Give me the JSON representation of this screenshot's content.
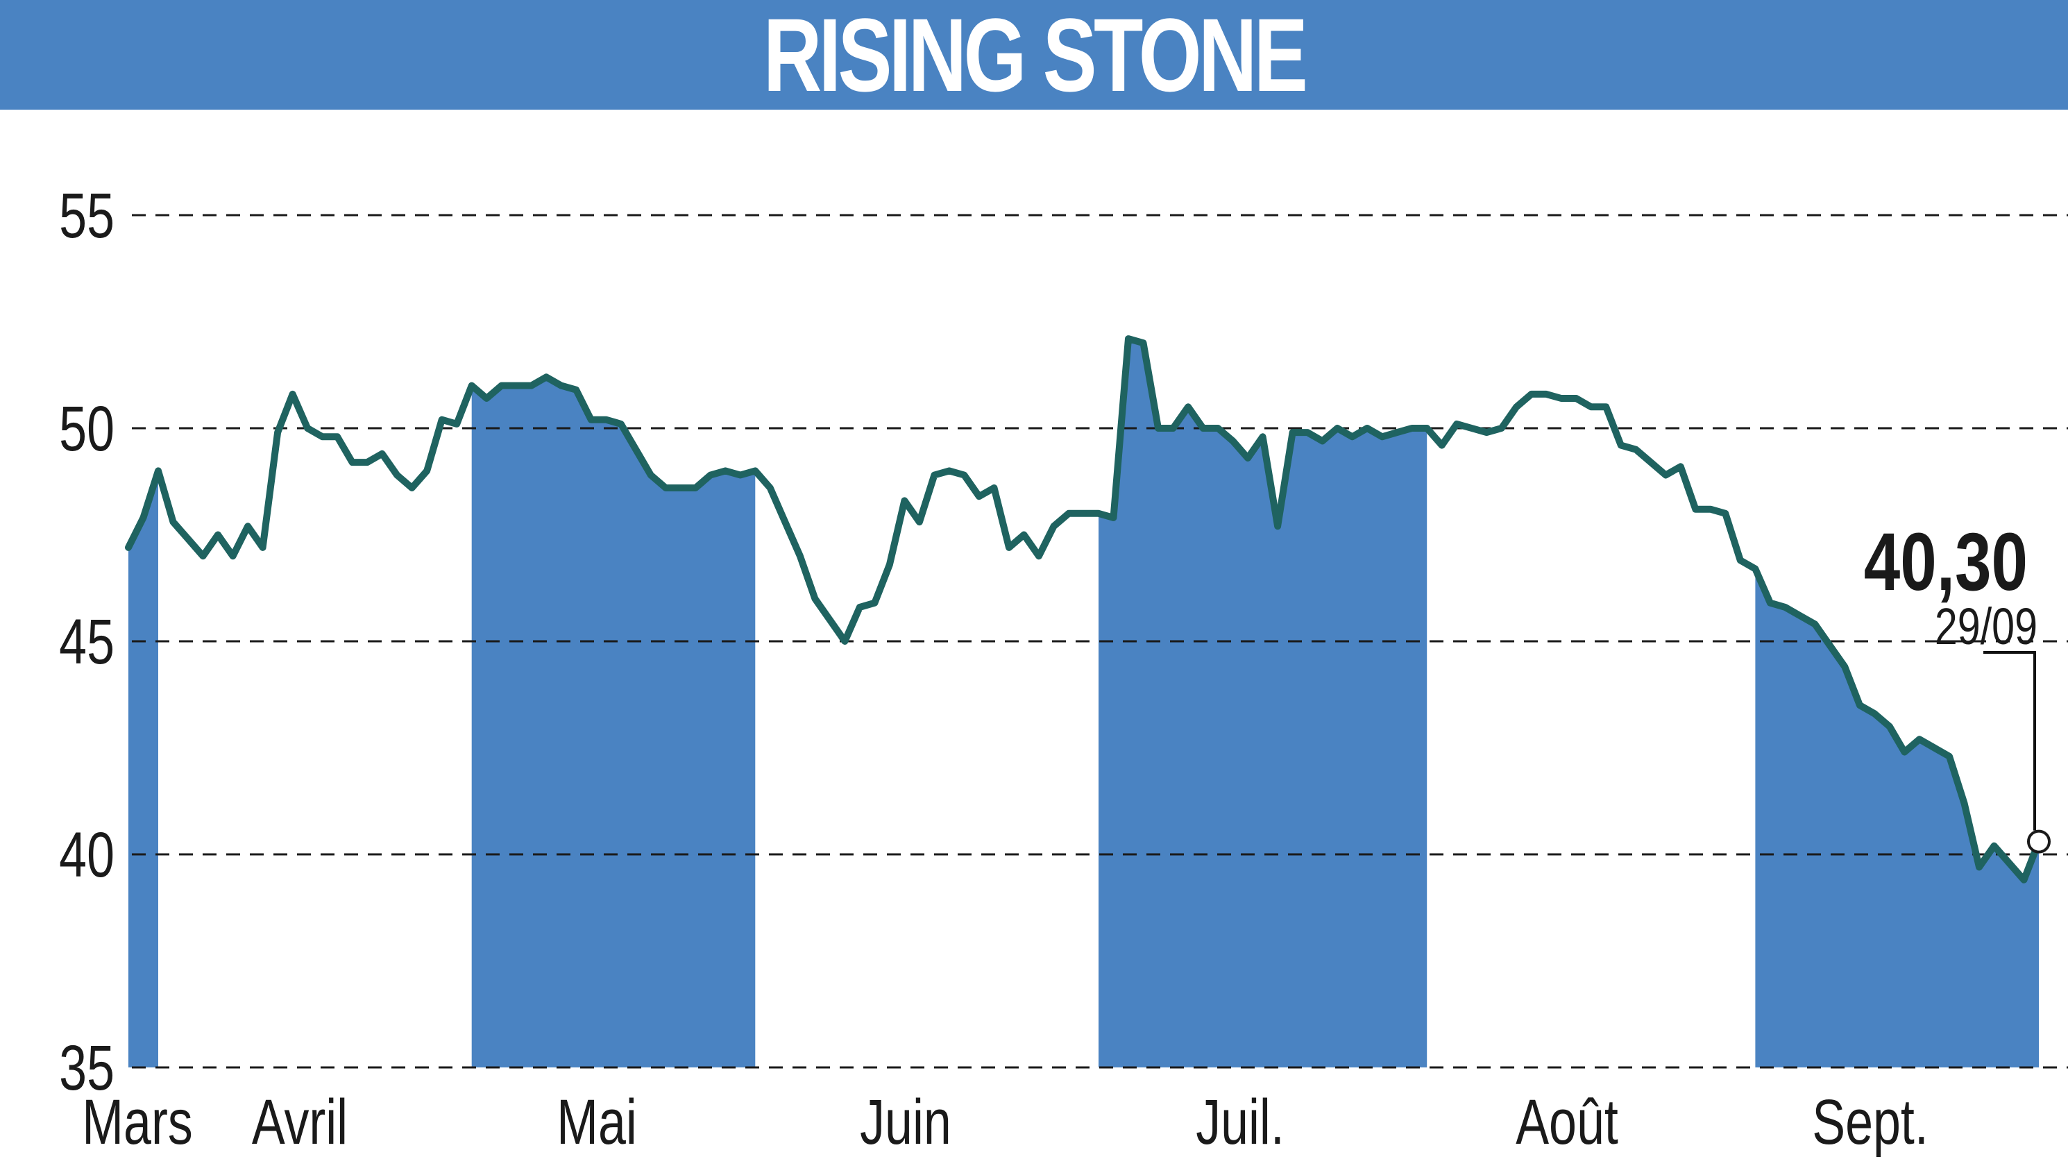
{
  "chart_data": {
    "type": "line",
    "title": "RISING STONE",
    "ylim": [
      35,
      57
    ],
    "yticks": [
      "55",
      "50",
      "45",
      "40",
      "35"
    ],
    "ytick_values": [
      55,
      50,
      45,
      40,
      35
    ],
    "grid": "horizontal dashed",
    "months": [
      "Mars",
      "Avril",
      "Mai",
      "Juin",
      "Juil.",
      "Août",
      "Sept."
    ],
    "shaded_months": [
      "Mars",
      "Mai",
      "Juil.",
      "Sept."
    ],
    "last_value": "40,30",
    "last_date": "29/09",
    "series": [
      {
        "values": [
          47.2,
          47.9,
          49.0,
          47.8,
          47.4,
          47.0,
          47.5,
          47.0,
          47.7,
          47.2,
          49.9,
          50.8,
          50.0,
          49.8,
          49.8,
          49.2,
          49.2,
          49.4,
          48.9,
          48.6,
          49.0,
          50.2,
          50.1,
          51.0,
          50.7,
          51.0,
          51.0,
          51.0,
          51.2,
          51.0,
          50.9,
          50.2,
          50.2,
          50.1,
          49.5,
          48.9,
          48.6,
          48.6,
          48.6,
          48.9,
          49.0,
          48.9,
          49.0,
          48.6,
          47.8,
          47.0,
          46.0,
          45.5,
          45.0,
          45.8,
          45.9,
          46.8,
          48.3,
          47.8,
          48.9,
          49.0,
          48.9,
          48.4,
          48.6,
          47.2,
          47.5,
          47.0,
          47.7,
          48.0,
          48.0,
          48.0,
          47.9,
          52.1,
          52.0,
          50.0,
          50.0,
          50.5,
          50.0,
          50.0,
          49.7,
          49.3,
          49.8,
          47.7,
          49.9,
          49.9,
          49.7,
          50.0,
          49.8,
          50.0,
          49.8,
          49.9,
          50.0,
          50.0,
          49.6,
          50.1,
          50.0,
          49.9,
          50.0,
          50.5,
          50.8,
          50.8,
          50.7,
          50.7,
          50.5,
          50.5,
          49.6,
          49.5,
          49.2,
          48.9,
          49.1,
          48.1,
          48.1,
          48.0,
          46.9,
          46.7,
          45.9,
          45.8,
          45.6,
          45.4,
          44.9,
          44.4,
          43.5,
          43.3,
          43.0,
          42.4,
          42.7,
          42.5,
          42.3,
          41.2,
          39.7,
          40.2,
          39.8,
          39.4,
          40.3
        ]
      }
    ]
  }
}
